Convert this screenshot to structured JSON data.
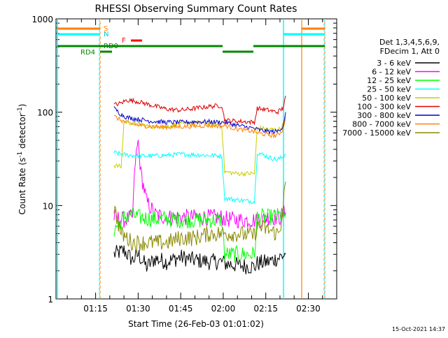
{
  "chart_data": {
    "type": "line",
    "title": "RHESSI Observing Summary Count Rates",
    "xlabel": "Start Time (26-Feb-03 01:01:02)",
    "ylabel": "Count Rate (s",
    "ylabel_sup1": "-1",
    "ylabel_mid": " detector",
    "ylabel_sup2": "-1",
    "ylabel_end": ")",
    "y_scale": "log",
    "ylim": [
      1,
      1000
    ],
    "xlim": [
      "01:01:02",
      "02:40:00"
    ],
    "grid": false,
    "y_ticks": [
      "1",
      "10",
      "100",
      "1000"
    ],
    "x_ticks": [
      "01:15",
      "01:30",
      "01:45",
      "02:00",
      "02:15",
      "02:30"
    ],
    "x_tick_minutes": [
      75,
      90,
      105,
      120,
      135,
      150
    ],
    "timestamp": "15-Oct-2021 14:37",
    "legend_position": "right",
    "legend_header": [
      "Det 1,3,4,5,6,9,",
      "FDecim 1, Att 0"
    ],
    "legend_entries": [
      {
        "label": "3 - 6 keV",
        "color": "#000000"
      },
      {
        "label": "6 - 12 keV",
        "color": "#ff00ff"
      },
      {
        "label": "12 - 25 keV",
        "color": "#00ff00"
      },
      {
        "label": "25 - 50 keV",
        "color": "#00ffff"
      },
      {
        "label": "50 - 100 keV",
        "color": "#cccc00"
      },
      {
        "label": "100 - 300 keV",
        "color": "#dd0000"
      },
      {
        "label": "300 - 800 keV",
        "color": "#0000cc"
      },
      {
        "label": "800 - 7000 keV",
        "color": "#ff8000"
      },
      {
        "label": "7000 - 15000 keV",
        "color": "#888800"
      }
    ],
    "flags": [
      {
        "label": "S",
        "color": "#ff8000"
      },
      {
        "label": "N",
        "color": "#00ffff"
      },
      {
        "label": "F",
        "color": "#ff0000"
      },
      {
        "label": "RD0",
        "color": "#008800"
      },
      {
        "label": "RD4",
        "color": "#008800"
      }
    ],
    "series": [
      {
        "name": "3 - 6 keV",
        "color": "#000000",
        "points": [
          [
            81.5,
            3
          ],
          [
            85,
            3.3
          ],
          [
            88,
            2.6
          ],
          [
            90,
            3
          ],
          [
            93,
            2.2
          ],
          [
            96,
            2.7
          ],
          [
            100,
            2.5
          ],
          [
            105,
            2.8
          ],
          [
            110,
            2.6
          ],
          [
            115,
            2.5
          ],
          [
            119.5,
            2.5
          ],
          [
            120.5,
            2.4
          ],
          [
            125,
            2.3
          ],
          [
            131,
            2.2
          ],
          [
            132,
            2.4
          ],
          [
            136,
            2.5
          ],
          [
            140,
            2.8
          ],
          [
            142,
            3
          ]
        ]
      },
      {
        "name": "6 - 12 keV",
        "color": "#ff00ff",
        "points": [
          [
            81.5,
            7.5
          ],
          [
            85,
            7
          ],
          [
            88,
            7.5
          ],
          [
            89,
            30
          ],
          [
            90,
            48
          ],
          [
            91,
            22
          ],
          [
            93,
            11
          ],
          [
            96,
            8
          ],
          [
            100,
            7.5
          ],
          [
            105,
            7.5
          ],
          [
            110,
            7.5
          ],
          [
            115,
            7.5
          ],
          [
            119.5,
            7.5
          ],
          [
            120.5,
            7.2
          ],
          [
            125,
            7
          ],
          [
            131,
            7
          ],
          [
            132,
            6.8
          ],
          [
            136,
            7.5
          ],
          [
            140,
            7.5
          ],
          [
            142,
            8.5
          ]
        ]
      },
      {
        "name": "12 - 25 keV",
        "color": "#00ff00",
        "points": [
          [
            81.5,
            5.5
          ],
          [
            85,
            7.5
          ],
          [
            88,
            8
          ],
          [
            90,
            7.5
          ],
          [
            95,
            7.2
          ],
          [
            100,
            7.2
          ],
          [
            105,
            7
          ],
          [
            110,
            7
          ],
          [
            115,
            7
          ],
          [
            119.5,
            7
          ],
          [
            120.5,
            3
          ],
          [
            125,
            3
          ],
          [
            131,
            3
          ],
          [
            132,
            7.5
          ],
          [
            136,
            7.5
          ],
          [
            140,
            7.8
          ],
          [
            142,
            8
          ]
        ]
      },
      {
        "name": "25 - 50 keV",
        "color": "#00ffff",
        "points": [
          [
            81.5,
            37
          ],
          [
            85,
            35
          ],
          [
            90,
            34
          ],
          [
            95,
            34
          ],
          [
            100,
            34.5
          ],
          [
            105,
            35.5
          ],
          [
            110,
            35
          ],
          [
            115,
            34.5
          ],
          [
            119.5,
            34
          ],
          [
            120.5,
            12
          ],
          [
            125,
            11.5
          ],
          [
            131,
            11
          ],
          [
            132,
            37
          ],
          [
            136,
            33
          ],
          [
            139,
            31
          ],
          [
            141,
            33
          ],
          [
            142,
            36
          ]
        ]
      },
      {
        "name": "50 - 100 keV",
        "color": "#cccc00",
        "points": [
          [
            81.5,
            27
          ],
          [
            84,
            26
          ],
          [
            85,
            80
          ],
          [
            88,
            76
          ],
          [
            92,
            72
          ],
          [
            96,
            70
          ],
          [
            100,
            71
          ],
          [
            104,
            74
          ],
          [
            108,
            76
          ],
          [
            112,
            77
          ],
          [
            116,
            74
          ],
          [
            119.5,
            72
          ],
          [
            120.5,
            23
          ],
          [
            125,
            22
          ],
          [
            131,
            22
          ],
          [
            132,
            68
          ],
          [
            135,
            66
          ],
          [
            138,
            65
          ],
          [
            140,
            66
          ],
          [
            142,
            80
          ]
        ]
      },
      {
        "name": "100 - 300 keV",
        "color": "#dd0000",
        "points": [
          [
            81.5,
            120
          ],
          [
            84,
            125
          ],
          [
            86,
            135
          ],
          [
            90,
            130
          ],
          [
            95,
            118
          ],
          [
            100,
            108
          ],
          [
            105,
            105
          ],
          [
            110,
            110
          ],
          [
            115,
            115
          ],
          [
            119.5,
            118
          ],
          [
            120.5,
            82
          ],
          [
            125,
            80
          ],
          [
            131,
            78
          ],
          [
            132,
            110
          ],
          [
            136,
            105
          ],
          [
            139,
            100
          ],
          [
            141,
            110
          ],
          [
            142,
            150
          ]
        ]
      },
      {
        "name": "300 - 800 keV",
        "color": "#0000cc",
        "points": [
          [
            81.5,
            110
          ],
          [
            84,
            95
          ],
          [
            86,
            88
          ],
          [
            90,
            84
          ],
          [
            95,
            80
          ],
          [
            100,
            78
          ],
          [
            105,
            78
          ],
          [
            110,
            79
          ],
          [
            115,
            79
          ],
          [
            119.5,
            78
          ],
          [
            120.5,
            78
          ],
          [
            125,
            72
          ],
          [
            131,
            67
          ],
          [
            132,
            65
          ],
          [
            136,
            62
          ],
          [
            139,
            62
          ],
          [
            141,
            70
          ],
          [
            142,
            100
          ]
        ]
      },
      {
        "name": "800 - 7000 keV",
        "color": "#ff8000",
        "points": [
          [
            81.5,
            90
          ],
          [
            84,
            82
          ],
          [
            86,
            77
          ],
          [
            90,
            73
          ],
          [
            95,
            70
          ],
          [
            100,
            69
          ],
          [
            105,
            70
          ],
          [
            110,
            71
          ],
          [
            115,
            72
          ],
          [
            119.5,
            71
          ],
          [
            120.5,
            72
          ],
          [
            125,
            66
          ],
          [
            131,
            62
          ],
          [
            132,
            60
          ],
          [
            136,
            57
          ],
          [
            139,
            56
          ],
          [
            141,
            65
          ],
          [
            142,
            90
          ]
        ]
      },
      {
        "name": "7000 - 15000 keV",
        "color": "#888800",
        "points": [
          [
            81.5,
            9.5
          ],
          [
            84,
            5
          ],
          [
            86,
            4.5
          ],
          [
            88,
            4
          ],
          [
            90,
            4
          ],
          [
            95,
            4
          ],
          [
            100,
            4
          ],
          [
            105,
            4.5
          ],
          [
            110,
            4.5
          ],
          [
            115,
            5
          ],
          [
            119.5,
            5
          ],
          [
            120.5,
            5
          ],
          [
            125,
            5
          ],
          [
            131,
            4.8
          ],
          [
            132,
            6
          ],
          [
            136,
            5.5
          ],
          [
            139,
            5
          ],
          [
            140,
            5.2
          ],
          [
            142,
            18
          ]
        ]
      }
    ]
  }
}
